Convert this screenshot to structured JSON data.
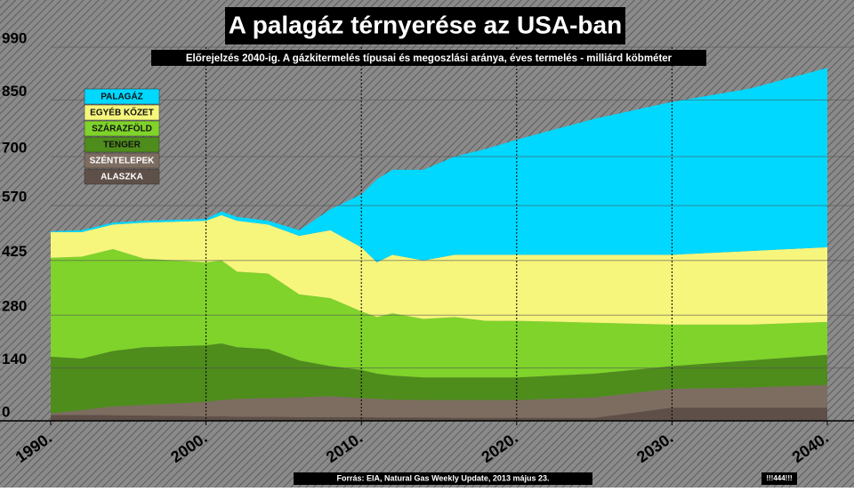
{
  "chart_data": {
    "type": "stacked_area",
    "title": "A palagáz térnyerése az USA-ban",
    "subtitle": "Előrejelzés 2040-ig. A gázkitermelés típusai és megoszlási aránya, éves termelés - milliárd köbméter",
    "source": "Forrás: EIA, Natural Gas Weekly Update, 2013 május 23.",
    "watermark": "!!!444!!!",
    "x": [
      1990,
      1992,
      1994,
      1996,
      2000,
      2001,
      2002,
      2004,
      2006,
      2008,
      2010,
      2011,
      2012,
      2014,
      2016,
      2018,
      2020,
      2025,
      2030,
      2035,
      2040
    ],
    "series": [
      {
        "name": "ALASZKA",
        "color": "#5e5048",
        "values": [
          15,
          16,
          15,
          14,
          12,
          12,
          11,
          11,
          10,
          10,
          10,
          9,
          9,
          9,
          8,
          8,
          8,
          8,
          35,
          35,
          35
        ]
      },
      {
        "name": "SZÉNTELEPEK",
        "color": "#7d6c60",
        "values": [
          5,
          12,
          23,
          28,
          38,
          43,
          47,
          49,
          52,
          55,
          50,
          49,
          47,
          46,
          47,
          47,
          47,
          54,
          50,
          53,
          60
        ]
      },
      {
        "name": "TENGER",
        "color": "#4e8c1c",
        "values": [
          150,
          137,
          147,
          153,
          150,
          150,
          137,
          130,
          98,
          80,
          75,
          67,
          64,
          60,
          60,
          60,
          60,
          63,
          60,
          72,
          80
        ]
      },
      {
        "name": "SZÁRAZFÖLD",
        "color": "#7fd32a",
        "values": [
          262,
          270,
          270,
          235,
          220,
          220,
          200,
          200,
          175,
          180,
          155,
          150,
          165,
          155,
          160,
          150,
          150,
          135,
          110,
          95,
          87
        ]
      },
      {
        "name": "EGYÉB KŐZET",
        "color": "#f6f57c",
        "values": [
          68,
          65,
          65,
          95,
          110,
          120,
          135,
          130,
          155,
          180,
          170,
          145,
          155,
          155,
          165,
          175,
          175,
          180,
          185,
          195,
          198
        ]
      },
      {
        "name": "PALAGÁZ",
        "color": "#00d8ff",
        "values": [
          2,
          5,
          5,
          5,
          5,
          10,
          10,
          10,
          15,
          55,
          140,
          220,
          225,
          240,
          260,
          280,
          305,
          360,
          405,
          430,
          475
        ]
      }
    ],
    "xlim": [
      1990,
      2040
    ],
    "xticks": [
      {
        "value": 1990,
        "label": "1990."
      },
      {
        "value": 2000,
        "label": "2000."
      },
      {
        "value": 2010,
        "label": "2010."
      },
      {
        "value": 2020,
        "label": "2020."
      },
      {
        "value": 2030,
        "label": "2030."
      },
      {
        "value": 2040,
        "label": "2040."
      }
    ],
    "ylim": [
      0,
      990
    ],
    "yticks": [
      0,
      140,
      280,
      425,
      570,
      700,
      850,
      990
    ],
    "grid": true
  }
}
